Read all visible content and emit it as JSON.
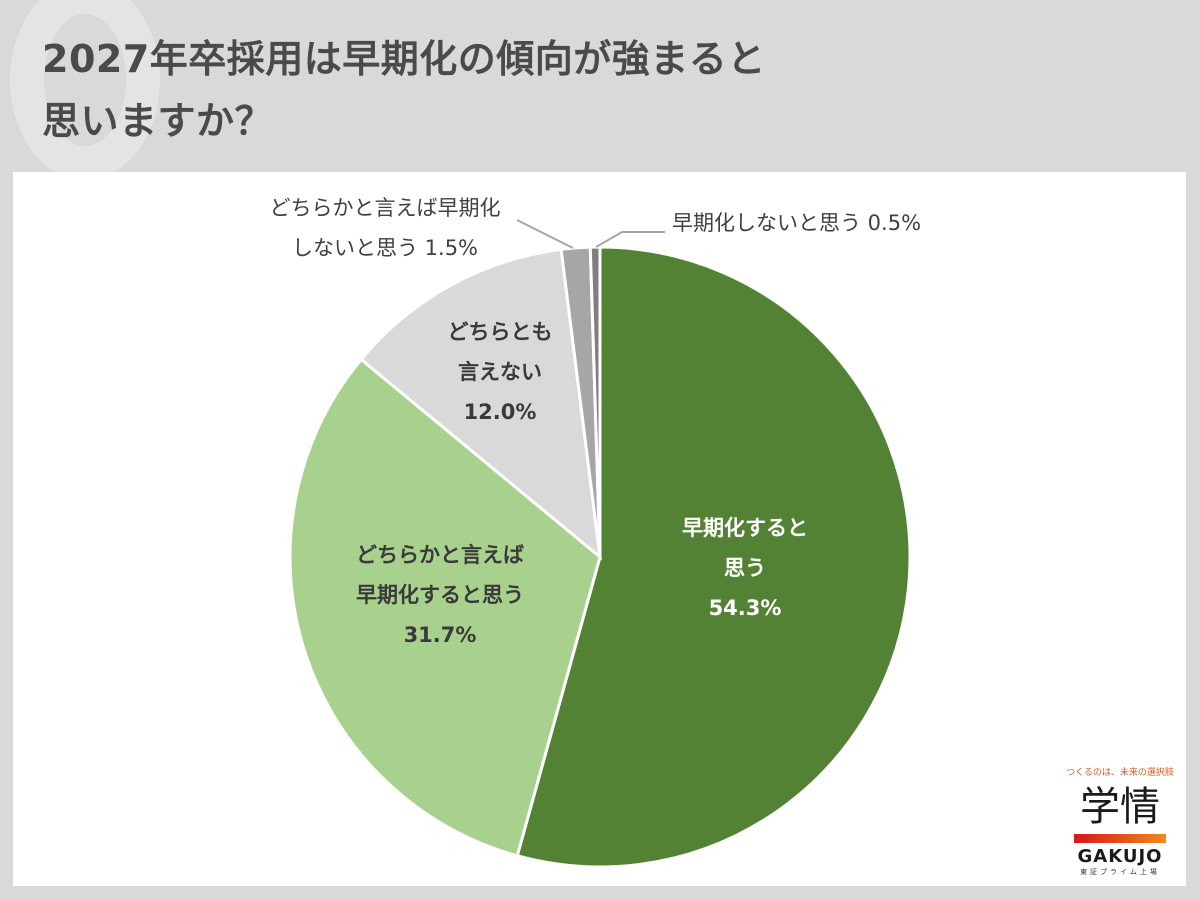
{
  "title": {
    "line1": "2027年卒採用は早期化の傾向が強まると",
    "line2": "思いますか？"
  },
  "chart_data": {
    "type": "pie",
    "title": "2027年卒採用は早期化の傾向が強まると思いますか？",
    "categories": [
      "早期化すると思う",
      "どちらかと言えば早期化すると思う",
      "どちらとも言えない",
      "どちらかと言えば早期化しないと思う",
      "早期化しないと思う"
    ],
    "values": [
      54.3,
      31.7,
      12.0,
      1.5,
      0.5
    ],
    "unit": "%",
    "colors": [
      "#548235",
      "#a9d18e",
      "#d9d9d9",
      "#a6a6a6",
      "#7f7f7f"
    ],
    "start_angle_deg": 0,
    "direction": "clockwise",
    "legend": "none (data labels)"
  },
  "labels": {
    "s0": {
      "l1": "早期化すると",
      "l2": "思う",
      "pct": "54.3%"
    },
    "s1": {
      "l1": "どちらかと言えば",
      "l2": "早期化すると思う",
      "pct": "31.7%"
    },
    "s2": {
      "l1": "どちらとも",
      "l2": "言えない",
      "pct": "12.0%"
    },
    "s3": {
      "l1": "どちらかと言えば早期化",
      "l2": "しないと思う 1.5%"
    },
    "s4": {
      "l1": "早期化しないと思う 0.5%"
    }
  },
  "logo": {
    "tagline": "つくるのは、未来の選択肢",
    "kanji": "学情",
    "english": "GAKUJO",
    "sub": "東証プライム上場"
  }
}
